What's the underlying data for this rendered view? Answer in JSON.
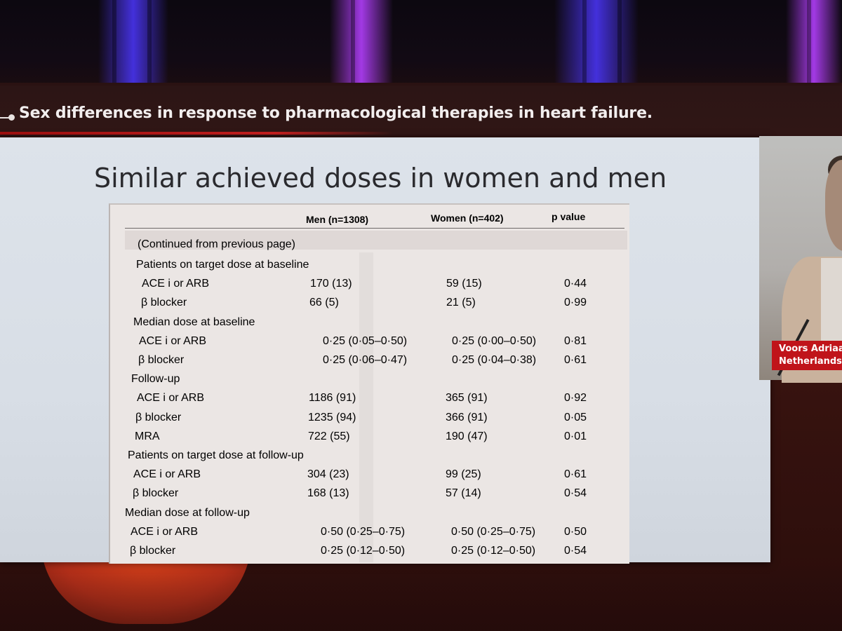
{
  "session": {
    "title": "Sex differences in response to pharmacological therapies in heart failure."
  },
  "slide": {
    "title": "Similar achieved doses in women and men"
  },
  "table": {
    "headers": {
      "men": "Men (n=1308)",
      "women": "Women (n=402)",
      "p": "p value"
    },
    "continued": "(Continued from previous page)",
    "rows": [
      {
        "label": "Patients on target dose at baseline"
      },
      {
        "label": "ACE i or ARB",
        "men": "170 (13)",
        "women": "59 (15)",
        "p": "0·44"
      },
      {
        "label": "β blocker",
        "men": "66 (5)",
        "women": "21 (5)",
        "p": "0·99"
      },
      {
        "label": "Median dose at baseline"
      },
      {
        "label": "ACE i or ARB",
        "men": "0·25 (0·05–0·50)",
        "women": "0·25 (0·00–0·50)",
        "p": "0·81"
      },
      {
        "label": "β blocker",
        "men": "0·25 (0·06–0·47)",
        "women": "0·25 (0·04–0·38)",
        "p": "0·61"
      },
      {
        "label": "Follow-up"
      },
      {
        "label": "ACE i or ARB",
        "men": "1186 (91)",
        "women": "365 (91)",
        "p": "0·92"
      },
      {
        "label": "β blocker",
        "men": "1235 (94)",
        "women": "366 (91)",
        "p": "0·05"
      },
      {
        "label": "MRA",
        "men": "722 (55)",
        "women": "190 (47)",
        "p": "0·01"
      },
      {
        "label": "Patients on target dose at follow-up"
      },
      {
        "label": "ACE i or ARB",
        "men": "304 (23)",
        "women": "99 (25)",
        "p": "0·61"
      },
      {
        "label": "β blocker",
        "men": "168 (13)",
        "women": "57 (14)",
        "p": "0·54"
      },
      {
        "label": "Median dose at follow-up"
      },
      {
        "label": "ACE i or ARB",
        "men": "0·50 (0·25–0·75)",
        "women": "0·50 (0·25–0·75)",
        "p": "0·50"
      },
      {
        "label": "β blocker",
        "men": "0·25 (0·12–0·50)",
        "women": "0·25 (0·12–0·50)",
        "p": "0·54"
      }
    ]
  },
  "speaker": {
    "name": "Voors Adriaa",
    "country": "Netherlands"
  }
}
